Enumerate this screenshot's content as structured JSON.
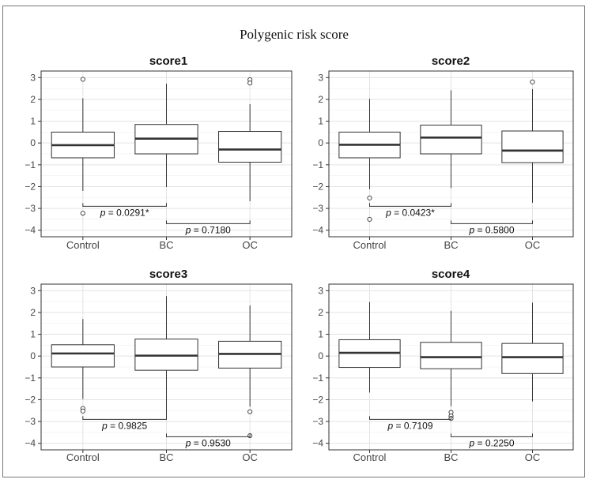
{
  "figure": {
    "title": "Polygenic risk score"
  },
  "chart_data": [
    {
      "type": "box",
      "title": "score1",
      "categories": [
        "Control",
        "BC",
        "OC"
      ],
      "ylim": [
        -4.3,
        3.3
      ],
      "yticks": [
        -4,
        -3,
        -2,
        -1,
        0,
        1,
        2,
        3
      ],
      "grid": true,
      "boxes": [
        {
          "category": "Control",
          "whisker_low": -2.2,
          "q1": -0.68,
          "median": -0.1,
          "q3": 0.5,
          "whisker_high": 2.05,
          "outliers": [
            2.92,
            -3.22
          ]
        },
        {
          "category": "BC",
          "whisker_low": -2.02,
          "q1": -0.5,
          "median": 0.2,
          "q3": 0.85,
          "whisker_high": 2.72,
          "outliers": []
        },
        {
          "category": "OC",
          "whisker_low": -2.67,
          "q1": -0.88,
          "median": -0.3,
          "q3": 0.53,
          "whisker_high": 1.78,
          "outliers": [
            2.9,
            2.75
          ]
        }
      ],
      "comparisons": [
        {
          "from": "Control",
          "to": "BC",
          "y": -2.9,
          "label": "= 0.0291*"
        },
        {
          "from": "BC",
          "to": "OC",
          "y": -3.7,
          "label": "= 0.7180"
        }
      ]
    },
    {
      "type": "box",
      "title": "score2",
      "categories": [
        "Control",
        "BC",
        "OC"
      ],
      "ylim": [
        -4.3,
        3.3
      ],
      "yticks": [
        -4,
        -3,
        -2,
        -1,
        0,
        1,
        2,
        3
      ],
      "grid": true,
      "boxes": [
        {
          "category": "Control",
          "whisker_low": -2.12,
          "q1": -0.68,
          "median": -0.08,
          "q3": 0.5,
          "whisker_high": 2.02,
          "outliers": [
            -2.52,
            -3.5
          ]
        },
        {
          "category": "BC",
          "whisker_low": -2.07,
          "q1": -0.5,
          "median": 0.25,
          "q3": 0.82,
          "whisker_high": 2.42,
          "outliers": []
        },
        {
          "category": "OC",
          "whisker_low": -2.74,
          "q1": -0.9,
          "median": -0.35,
          "q3": 0.55,
          "whisker_high": 2.47,
          "outliers": [
            2.8
          ]
        }
      ],
      "comparisons": [
        {
          "from": "Control",
          "to": "BC",
          "y": -2.9,
          "label": "= 0.0423*"
        },
        {
          "from": "BC",
          "to": "OC",
          "y": -3.7,
          "label": "= 0.5800"
        }
      ]
    },
    {
      "type": "box",
      "title": "score3",
      "categories": [
        "Control",
        "BC",
        "OC"
      ],
      "ylim": [
        -4.3,
        3.3
      ],
      "yticks": [
        -4,
        -3,
        -2,
        -1,
        0,
        1,
        2,
        3
      ],
      "grid": true,
      "boxes": [
        {
          "category": "Control",
          "whisker_low": -1.97,
          "q1": -0.5,
          "median": 0.12,
          "q3": 0.52,
          "whisker_high": 1.7,
          "outliers": [
            -2.4,
            -2.52
          ]
        },
        {
          "category": "BC",
          "whisker_low": -2.78,
          "q1": -0.65,
          "median": 0.02,
          "q3": 0.78,
          "whisker_high": 2.75,
          "outliers": []
        },
        {
          "category": "OC",
          "whisker_low": -2.32,
          "q1": -0.55,
          "median": 0.1,
          "q3": 0.68,
          "whisker_high": 2.32,
          "outliers": [
            -2.55,
            -3.65
          ]
        }
      ],
      "comparisons": [
        {
          "from": "Control",
          "to": "BC",
          "y": -2.9,
          "label": "= 0.9825"
        },
        {
          "from": "BC",
          "to": "OC",
          "y": -3.7,
          "label": "= 0.9530"
        }
      ]
    },
    {
      "type": "box",
      "title": "score4",
      "categories": [
        "Control",
        "BC",
        "OC"
      ],
      "ylim": [
        -4.3,
        3.3
      ],
      "yticks": [
        -4,
        -3,
        -2,
        -1,
        0,
        1,
        2,
        3
      ],
      "grid": true,
      "boxes": [
        {
          "category": "Control",
          "whisker_low": -1.67,
          "q1": -0.52,
          "median": 0.15,
          "q3": 0.75,
          "whisker_high": 2.48,
          "outliers": []
        },
        {
          "category": "BC",
          "whisker_low": -2.3,
          "q1": -0.58,
          "median": -0.05,
          "q3": 0.63,
          "whisker_high": 2.08,
          "outliers": [
            -2.58,
            -2.75,
            -2.86
          ]
        },
        {
          "category": "OC",
          "whisker_low": -2.08,
          "q1": -0.8,
          "median": -0.05,
          "q3": 0.58,
          "whisker_high": 2.45,
          "outliers": []
        }
      ],
      "comparisons": [
        {
          "from": "Control",
          "to": "BC",
          "y": -2.9,
          "label": "= 0.7109"
        },
        {
          "from": "BC",
          "to": "OC",
          "y": -3.7,
          "label": "= 0.2250"
        }
      ]
    }
  ]
}
